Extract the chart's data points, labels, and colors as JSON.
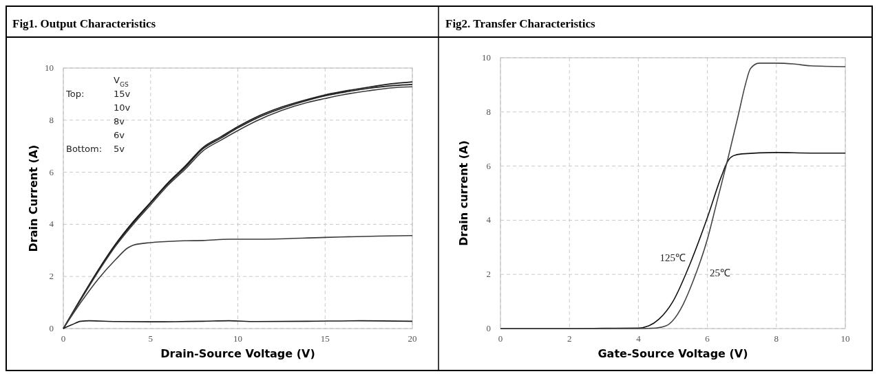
{
  "chart_data": [
    {
      "type": "line",
      "title": "Fig1. Output Characteristics",
      "xlabel": "Drain-Source Voltage (V)",
      "ylabel": "Drain Current (A)",
      "xlim": [
        0,
        20
      ],
      "ylim": [
        0,
        10
      ],
      "xticks": [
        0,
        5,
        10,
        15,
        20
      ],
      "yticks": [
        0,
        2,
        4,
        6,
        8,
        10
      ],
      "grid": true,
      "line_style": "solid",
      "annotations": [
        "V$_{GS}$",
        "Top: 15v",
        "10v",
        "8v",
        "6v",
        "Bottom: 5v"
      ],
      "series": [
        {
          "color": "#1a1a1a",
          "x": [
            0,
            1,
            2,
            3,
            4,
            5,
            6,
            7,
            8,
            9,
            10,
            11,
            12.5,
            14,
            15,
            16,
            17.5,
            19,
            20
          ],
          "values": [
            0,
            1.15,
            2.25,
            3.25,
            4.1,
            4.85,
            5.6,
            6.25,
            6.95,
            7.35,
            7.75,
            8.1,
            8.5,
            8.8,
            8.97,
            9.1,
            9.27,
            9.41,
            9.47
          ]
        },
        {
          "color": "#1a1a1a",
          "x": [
            0,
            1,
            2,
            3,
            4,
            5,
            6,
            7,
            8,
            9,
            10,
            11,
            12.5,
            14,
            15,
            16,
            17.5,
            19,
            20
          ],
          "values": [
            0,
            1.13,
            2.22,
            3.22,
            4.06,
            4.82,
            5.56,
            6.2,
            6.9,
            7.3,
            7.7,
            8.05,
            8.45,
            8.76,
            8.93,
            9.06,
            9.22,
            9.33,
            9.37
          ]
        },
        {
          "color": "#3a3a3a",
          "x": [
            0,
            1,
            2,
            3,
            4,
            5,
            6,
            7,
            8,
            9,
            10,
            11,
            12.5,
            14,
            15,
            16,
            17.5,
            19,
            20
          ],
          "values": [
            0,
            1.1,
            2.18,
            3.17,
            4.0,
            4.75,
            5.5,
            6.13,
            6.82,
            7.22,
            7.6,
            7.95,
            8.37,
            8.68,
            8.83,
            8.97,
            9.13,
            9.25,
            9.28
          ]
        },
        {
          "color": "#3a3a3a",
          "x": [
            0,
            1,
            2,
            3,
            3.7,
            4,
            5,
            7,
            8,
            9.5,
            11,
            15,
            18,
            20
          ],
          "values": [
            0,
            1.0,
            1.9,
            2.65,
            3.1,
            3.2,
            3.3,
            3.37,
            3.38,
            3.43,
            3.43,
            3.5,
            3.55,
            3.57
          ]
        },
        {
          "color": "#1a1a1a",
          "x": [
            0,
            0.5,
            1,
            1.5,
            3,
            5,
            8,
            9.5,
            11,
            14,
            17,
            20
          ],
          "values": [
            0,
            0.15,
            0.28,
            0.3,
            0.27,
            0.26,
            0.28,
            0.3,
            0.27,
            0.28,
            0.3,
            0.28
          ]
        }
      ]
    },
    {
      "type": "line",
      "title": "Fig2. Transfer Characteristics",
      "xlabel": "Gate-Source Voltage (V)",
      "ylabel": "Drain current (A)",
      "xlim": [
        0,
        10
      ],
      "ylim": [
        0,
        10
      ],
      "xticks": [
        0,
        2,
        4,
        6,
        8,
        10
      ],
      "yticks": [
        0,
        2,
        4,
        6,
        8,
        10
      ],
      "grid": true,
      "line_style": "solid",
      "series": [
        {
          "name": "125℃",
          "color": "#111111",
          "x": [
            0,
            2,
            3,
            4,
            4.3,
            4.6,
            5,
            5.5,
            6,
            6.4,
            6.6,
            6.75,
            7,
            8,
            9,
            10
          ],
          "values": [
            0,
            0,
            0.01,
            0.02,
            0.1,
            0.35,
            1.0,
            2.4,
            4.1,
            5.6,
            6.2,
            6.38,
            6.45,
            6.5,
            6.48,
            6.48
          ]
        },
        {
          "name": "25℃",
          "color": "#444444",
          "x": [
            0,
            4,
            4.5,
            4.8,
            5,
            5.3,
            5.6,
            6,
            6.3,
            6.6,
            6.9,
            7.1,
            7.25,
            7.5,
            8,
            8.5,
            9,
            10
          ],
          "values": [
            0,
            0,
            0.02,
            0.1,
            0.3,
            0.9,
            1.8,
            3.3,
            4.8,
            6.3,
            7.9,
            9.0,
            9.6,
            9.8,
            9.8,
            9.77,
            9.7,
            9.67
          ]
        }
      ]
    }
  ]
}
